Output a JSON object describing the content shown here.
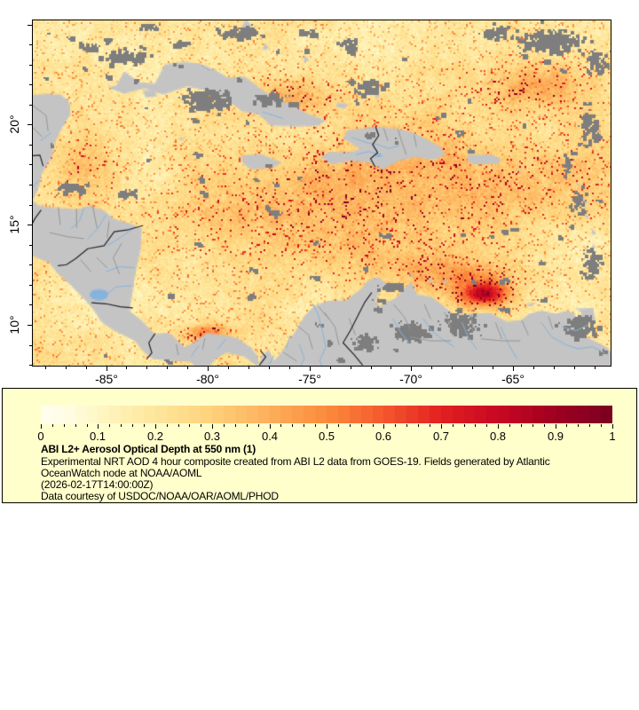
{
  "figure": {
    "x_axis": {
      "tick_labels": [
        "-85°",
        "-80°",
        "-75°",
        "-70°",
        "-65°"
      ],
      "tick_values": [
        -85,
        -80,
        -75,
        -70,
        -65
      ]
    },
    "y_axis": {
      "tick_labels": [
        "20°",
        "15°",
        "10°"
      ],
      "tick_values": [
        20,
        15,
        10
      ]
    }
  },
  "legend": {
    "title": "ABI L2+ Aerosol Optical Depth at 550 nm (1)",
    "description_lines": [
      "Experimental NRT AOD 4 hour composite created from ABI L2 data from GOES-19. Fields generated by Atlantic",
      "OceanWatch node at NOAA/AOML",
      "(2026-02-17T14:00:00Z)",
      "Data courtesy of USDOC/NOAA/OAR/AOML/PHOD"
    ],
    "colorbar_tick_labels": [
      "0",
      "0.1",
      "0.2",
      "0.3",
      "0.4",
      "0.5",
      "0.6",
      "0.7",
      "0.8",
      "0.9",
      "1"
    ],
    "background_color": "#ffffcc"
  },
  "colormap": {
    "stops": [
      [
        0,
        "#fffef0"
      ],
      [
        0.05,
        "#fffce1"
      ],
      [
        0.1,
        "#fff7c5"
      ],
      [
        0.2,
        "#fee79c"
      ],
      [
        0.3,
        "#fed27a"
      ],
      [
        0.4,
        "#fdaf5a"
      ],
      [
        0.5,
        "#fc8c3c"
      ],
      [
        0.6,
        "#f5582e"
      ],
      [
        0.7,
        "#e32020"
      ],
      [
        0.8,
        "#c80823"
      ],
      [
        0.9,
        "#a00020"
      ],
      [
        1,
        "#7a0022"
      ]
    ]
  },
  "colors": {
    "land": "#c4c4c4",
    "cloud": "#7e7e7e",
    "river": "#85b3dc",
    "admin_border": "#969696",
    "country_border": "#23242e",
    "frame": "#000000",
    "page_background": "#ffffff"
  }
}
